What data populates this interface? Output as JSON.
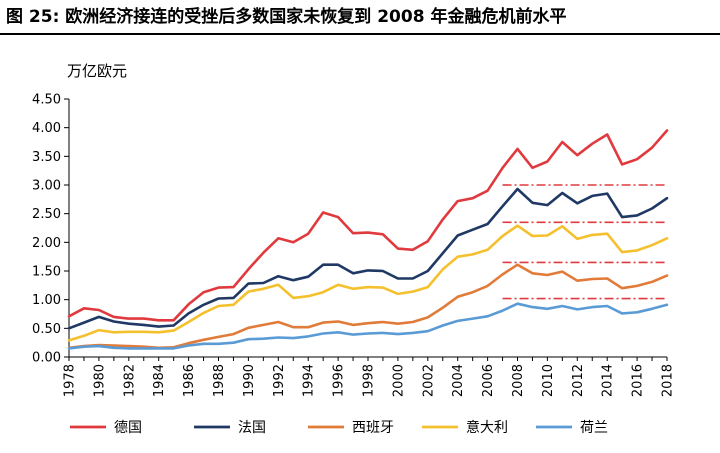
{
  "title": "图  25:  欧洲经济接连的受挫后多数国家未恢复到 2008 年金融危机前水平",
  "chart_data": {
    "type": "line",
    "ylabel": "万亿欧元",
    "ylim": [
      0,
      4.5
    ],
    "yticks": [
      "0.00",
      "0.50",
      "1.00",
      "1.50",
      "2.00",
      "2.50",
      "3.00",
      "3.50",
      "4.00",
      "4.50"
    ],
    "xticks": [
      "1978",
      "1980",
      "1982",
      "1984",
      "1986",
      "1988",
      "1990",
      "1992",
      "1994",
      "1996",
      "1998",
      "2000",
      "2002",
      "2004",
      "2006",
      "2008",
      "2010",
      "2012",
      "2014",
      "2016",
      "2018"
    ],
    "x": [
      1978,
      1979,
      1980,
      1981,
      1982,
      1983,
      1984,
      1985,
      1986,
      1987,
      1988,
      1989,
      1990,
      1991,
      1992,
      1993,
      1994,
      1995,
      1996,
      1997,
      1998,
      1999,
      2000,
      2001,
      2002,
      2003,
      2004,
      2005,
      2006,
      2007,
      2008,
      2009,
      2010,
      2011,
      2012,
      2013,
      2014,
      2015,
      2016,
      2017,
      2018
    ],
    "grid": false,
    "legend_position": "bottom",
    "series": [
      {
        "name": "德国",
        "color": "#e03a3e",
        "values": [
          0.71,
          0.85,
          0.82,
          0.7,
          0.67,
          0.67,
          0.64,
          0.64,
          0.92,
          1.13,
          1.21,
          1.22,
          1.53,
          1.82,
          2.07,
          2.0,
          2.15,
          2.52,
          2.44,
          2.16,
          2.17,
          2.14,
          1.89,
          1.87,
          2.02,
          2.4,
          2.72,
          2.77,
          2.9,
          3.3,
          3.63,
          3.3,
          3.41,
          3.75,
          3.52,
          3.72,
          3.88,
          3.36,
          3.45,
          3.65,
          3.95
        ]
      },
      {
        "name": "法国",
        "color": "#1f3864",
        "values": [
          0.5,
          0.6,
          0.7,
          0.62,
          0.58,
          0.56,
          0.53,
          0.55,
          0.76,
          0.91,
          1.02,
          1.03,
          1.28,
          1.29,
          1.41,
          1.34,
          1.4,
          1.61,
          1.61,
          1.46,
          1.51,
          1.5,
          1.37,
          1.37,
          1.5,
          1.81,
          2.12,
          2.22,
          2.32,
          2.63,
          2.93,
          2.69,
          2.65,
          2.86,
          2.68,
          2.81,
          2.85,
          2.44,
          2.47,
          2.59,
          2.77
        ]
      },
      {
        "name": "西班牙",
        "color": "#e07b39",
        "values": [
          0.16,
          0.19,
          0.21,
          0.2,
          0.19,
          0.18,
          0.16,
          0.17,
          0.24,
          0.3,
          0.35,
          0.4,
          0.51,
          0.56,
          0.61,
          0.52,
          0.52,
          0.6,
          0.62,
          0.56,
          0.59,
          0.61,
          0.58,
          0.61,
          0.69,
          0.86,
          1.05,
          1.13,
          1.24,
          1.44,
          1.61,
          1.46,
          1.43,
          1.49,
          1.33,
          1.36,
          1.37,
          1.2,
          1.24,
          1.31,
          1.42
        ]
      },
      {
        "name": "意大利",
        "color": "#f5c02d",
        "values": [
          0.29,
          0.37,
          0.47,
          0.43,
          0.44,
          0.44,
          0.43,
          0.46,
          0.61,
          0.77,
          0.89,
          0.91,
          1.14,
          1.19,
          1.26,
          1.03,
          1.06,
          1.13,
          1.26,
          1.19,
          1.22,
          1.21,
          1.1,
          1.14,
          1.22,
          1.53,
          1.75,
          1.79,
          1.87,
          2.11,
          2.29,
          2.11,
          2.12,
          2.28,
          2.06,
          2.13,
          2.15,
          1.83,
          1.86,
          1.95,
          2.07
        ]
      },
      {
        "name": "荷兰",
        "color": "#5b9bd5",
        "values": [
          0.15,
          0.18,
          0.19,
          0.16,
          0.15,
          0.15,
          0.15,
          0.15,
          0.2,
          0.23,
          0.23,
          0.25,
          0.31,
          0.32,
          0.34,
          0.33,
          0.36,
          0.41,
          0.43,
          0.39,
          0.41,
          0.42,
          0.4,
          0.42,
          0.45,
          0.55,
          0.63,
          0.67,
          0.71,
          0.81,
          0.93,
          0.87,
          0.84,
          0.89,
          0.83,
          0.87,
          0.89,
          0.76,
          0.78,
          0.84,
          0.91
        ]
      }
    ],
    "reference_lines": [
      {
        "series": "法国",
        "y": 3.0,
        "x_from": 2007,
        "x_to": 2018
      },
      {
        "series": "意大利",
        "y": 2.35,
        "x_from": 2007,
        "x_to": 2018
      },
      {
        "series": "西班牙",
        "y": 1.65,
        "x_from": 2007,
        "x_to": 2018
      },
      {
        "series": "荷兰",
        "y": 1.02,
        "x_from": 2007,
        "x_to": 2018
      }
    ]
  }
}
